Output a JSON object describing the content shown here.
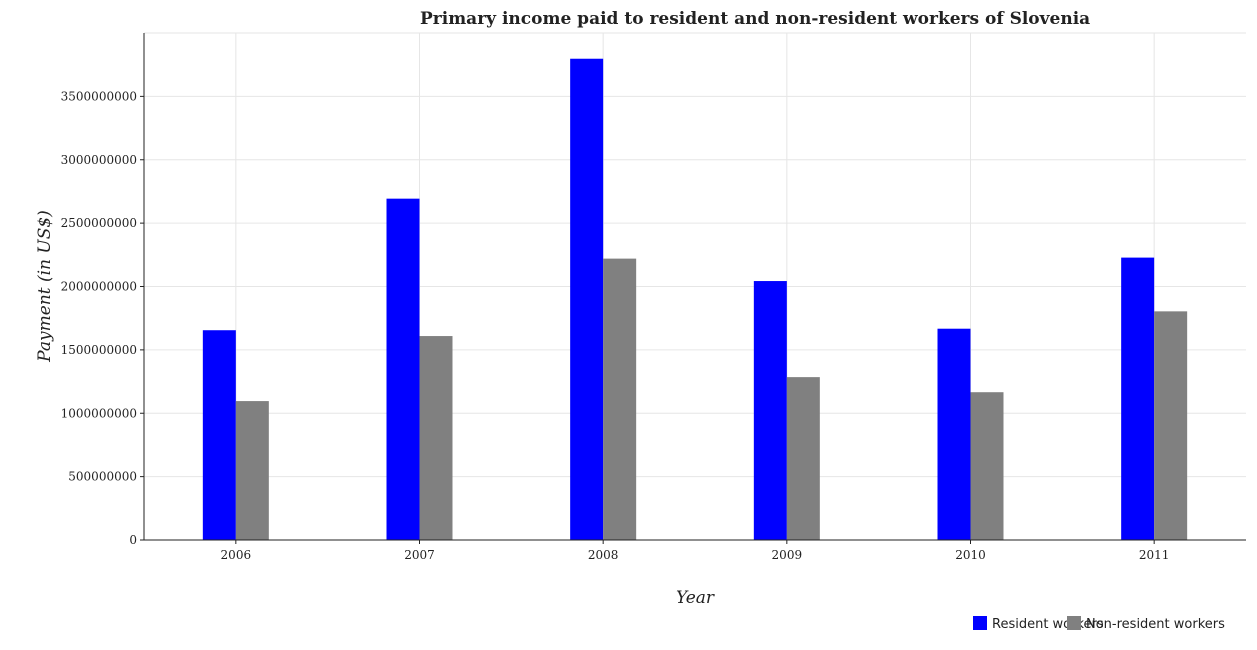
{
  "chart_data": {
    "type": "bar",
    "title": "Primary income paid to resident and non-resident workers of Slovenia",
    "xlabel": "Year",
    "ylabel": "Payment (in US$)",
    "categories": [
      "2006",
      "2007",
      "2008",
      "2009",
      "2010",
      "2011"
    ],
    "series": [
      {
        "name": "Resident workers",
        "color": "#0000ff",
        "values": [
          1655000000,
          2693000000,
          3797000000,
          2043000000,
          1667000000,
          2228000000
        ]
      },
      {
        "name": "Non-resident workers",
        "color": "#808080",
        "values": [
          1096000000,
          1609000000,
          2220000000,
          1285000000,
          1166000000,
          1804000000
        ]
      }
    ],
    "ylim": [
      0,
      4000000000
    ],
    "yticks": [
      0,
      500000000,
      1000000000,
      1500000000,
      2000000000,
      2500000000,
      3000000000,
      3500000000
    ],
    "ytick_labels": [
      "0",
      "500000000",
      "1000000000",
      "1500000000",
      "2000000000",
      "2500000000",
      "3000000000",
      "3500000000"
    ],
    "grid": true,
    "legend_position": "bottom-right"
  }
}
